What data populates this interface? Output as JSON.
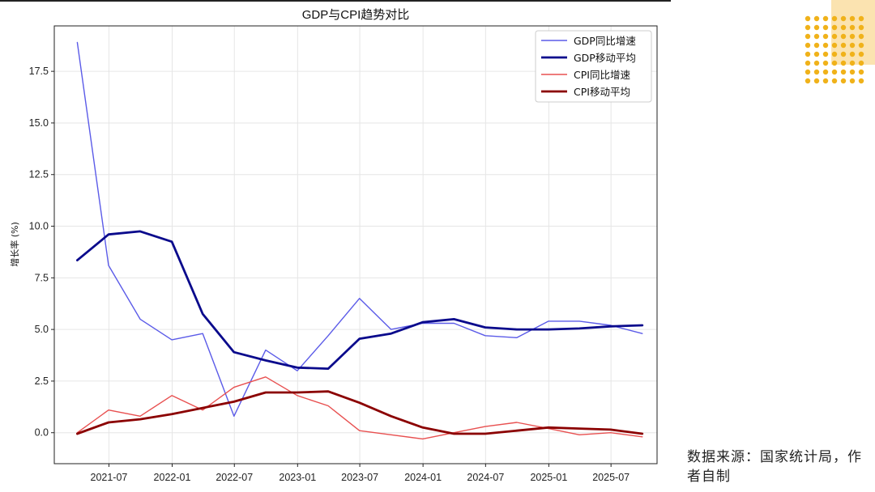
{
  "slide": {
    "source_note": "数据来源：国家统计局，作者自制",
    "accent_color": "#f0b21a",
    "accent_light": "#fbe3b0"
  },
  "chart_data": {
    "type": "line",
    "title": "GDP与CPI趋势对比",
    "xlabel": "",
    "ylabel": "增长率 (%)",
    "x_ticks": [
      "2021-07",
      "2022-01",
      "2022-07",
      "2023-01",
      "2023-07",
      "2024-01",
      "2024-07",
      "2025-01",
      "2025-07"
    ],
    "y_ticks": [
      "0.0",
      "2.5",
      "5.0",
      "7.5",
      "10.0",
      "12.5",
      "15.0",
      "17.5"
    ],
    "ylim": [
      -1.5,
      19.7
    ],
    "xlim": [
      "2021-01-23",
      "2025-11-12"
    ],
    "grid": true,
    "legend_position": "top-right",
    "x": [
      "2021-03-31",
      "2021-06-30",
      "2021-09-30",
      "2021-12-31",
      "2022-03-31",
      "2022-06-30",
      "2022-09-30",
      "2022-12-31",
      "2023-03-31",
      "2023-06-30",
      "2023-09-30",
      "2023-12-31",
      "2024-03-31",
      "2024-06-30",
      "2024-09-30",
      "2024-12-31",
      "2025-03-31",
      "2025-06-30",
      "2025-09-30"
    ],
    "series": [
      {
        "name": "GDP同比增速",
        "color": "#5b5be8",
        "width": 1.4,
        "values": [
          18.9,
          8.1,
          5.5,
          4.5,
          4.8,
          0.8,
          4.0,
          3.0,
          4.7,
          6.5,
          5.0,
          5.3,
          5.3,
          4.7,
          4.6,
          5.4,
          5.4,
          5.2,
          4.8
        ]
      },
      {
        "name": "GDP移动平均",
        "color": "#0a0a8c",
        "width": 2.8,
        "values": [
          8.35,
          9.6,
          9.75,
          9.25,
          5.75,
          3.9,
          3.5,
          3.15,
          3.1,
          4.55,
          4.8,
          5.35,
          5.5,
          5.1,
          5.0,
          5.0,
          5.05,
          5.15,
          5.2
        ]
      },
      {
        "name": "CPI同比增速",
        "color": "#e85050",
        "width": 1.4,
        "values": [
          0.0,
          1.1,
          0.8,
          1.8,
          1.1,
          2.2,
          2.7,
          1.8,
          1.3,
          0.1,
          -0.1,
          -0.3,
          0.0,
          0.3,
          0.5,
          0.2,
          -0.1,
          0.0,
          -0.2
        ]
      },
      {
        "name": "CPI移动平均",
        "color": "#8b0000",
        "width": 2.8,
        "values": [
          -0.05,
          0.5,
          0.65,
          0.9,
          1.2,
          1.5,
          1.95,
          1.95,
          2.0,
          1.45,
          0.8,
          0.25,
          -0.05,
          -0.05,
          0.1,
          0.25,
          0.2,
          0.15,
          -0.05
        ]
      }
    ]
  }
}
